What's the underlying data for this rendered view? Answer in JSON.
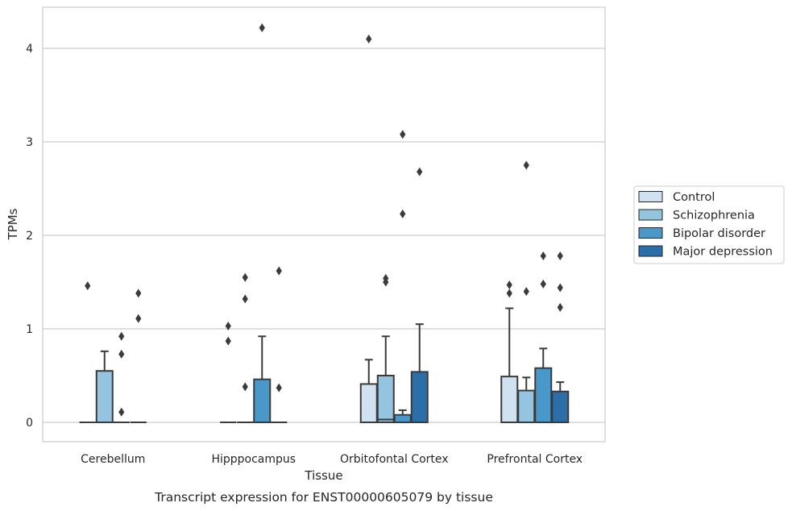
{
  "chart_data": {
    "type": "boxplot",
    "xlabel": "Tissue",
    "ylabel": "TPMs",
    "caption": "Transcript expression for ENST00000605079 by tissue",
    "ylim": [
      -0.2,
      4.45
    ],
    "yticks": [
      "0",
      "1",
      "2",
      "3",
      "4"
    ],
    "grid": "horizontal",
    "legend_position": "right",
    "categories": [
      "Cerebellum",
      "Hipppocampus",
      "Orbitofontal Cortex",
      "Prefrontal Cortex"
    ],
    "series": [
      {
        "name": "Control",
        "color": "#d0e1f2",
        "boxes": [
          {
            "whislo": 0,
            "q1": 0,
            "med": 0,
            "q3": 0,
            "whishi": 0,
            "fliers": [
              1.46
            ]
          },
          {
            "whislo": 0,
            "q1": 0,
            "med": 0,
            "q3": 0,
            "whishi": 0,
            "fliers": [
              1.03,
              0.87
            ]
          },
          {
            "whislo": 0,
            "q1": 0,
            "med": 0,
            "q3": 0.41,
            "whishi": 0.67,
            "fliers": [
              4.1
            ]
          },
          {
            "whislo": 0,
            "q1": 0,
            "med": 0,
            "q3": 0.49,
            "whishi": 1.22,
            "fliers": [
              1.47,
              1.38
            ]
          }
        ]
      },
      {
        "name": "Schizophrenia",
        "color": "#94c4df",
        "boxes": [
          {
            "whislo": 0,
            "q1": 0,
            "med": 0,
            "q3": 0.55,
            "whishi": 0.76,
            "fliers": []
          },
          {
            "whislo": 0,
            "q1": 0,
            "med": 0,
            "q3": 0,
            "whishi": 0,
            "fliers": [
              1.55,
              1.32,
              0.38
            ]
          },
          {
            "whislo": 0,
            "q1": 0,
            "med": 0.03,
            "q3": 0.5,
            "whishi": 0.92,
            "fliers": [
              1.54,
              1.5
            ]
          },
          {
            "whislo": 0,
            "q1": 0,
            "med": 0,
            "q3": 0.34,
            "whishi": 0.48,
            "fliers": [
              2.75,
              1.4
            ]
          }
        ]
      },
      {
        "name": "Bipolar disorder",
        "color": "#4a98c9",
        "boxes": [
          {
            "whislo": 0,
            "q1": 0,
            "med": 0,
            "q3": 0,
            "whishi": 0,
            "fliers": [
              0.92,
              0.73,
              0.11
            ]
          },
          {
            "whislo": 0,
            "q1": 0,
            "med": 0,
            "q3": 0.46,
            "whishi": 0.92,
            "fliers": [
              4.22
            ]
          },
          {
            "whislo": 0,
            "q1": 0,
            "med": 0,
            "q3": 0.08,
            "whishi": 0.13,
            "fliers": [
              3.08,
              2.23
            ]
          },
          {
            "whislo": 0,
            "q1": 0,
            "med": 0,
            "q3": 0.58,
            "whishi": 0.79,
            "fliers": [
              1.78,
              1.48
            ]
          }
        ]
      },
      {
        "name": "Major depression",
        "color": "#2b6ea8",
        "boxes": [
          {
            "whislo": 0,
            "q1": 0,
            "med": 0,
            "q3": 0,
            "whishi": 0,
            "fliers": [
              1.38,
              1.11
            ]
          },
          {
            "whislo": 0,
            "q1": 0,
            "med": 0,
            "q3": 0,
            "whishi": 0,
            "fliers": [
              1.62,
              0.37
            ]
          },
          {
            "whislo": 0,
            "q1": 0,
            "med": 0,
            "q3": 0.54,
            "whishi": 1.05,
            "fliers": [
              2.68
            ]
          },
          {
            "whislo": 0,
            "q1": 0,
            "med": 0,
            "q3": 0.33,
            "whishi": 0.43,
            "fliers": [
              1.78,
              1.44,
              1.23
            ]
          }
        ]
      }
    ]
  }
}
